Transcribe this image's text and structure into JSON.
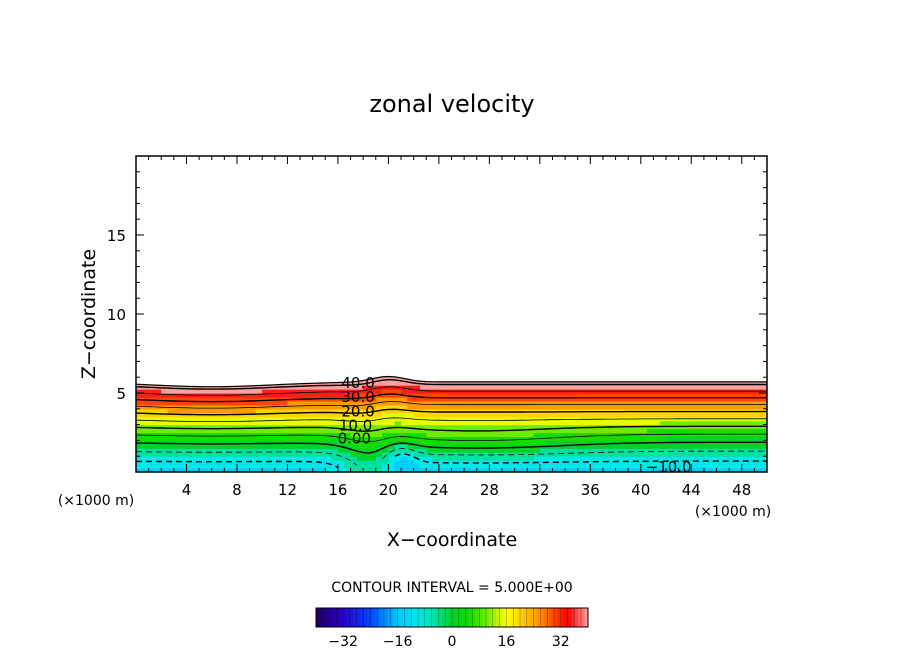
{
  "chart_data": {
    "type": "contour",
    "title": "zonal velocity",
    "xlabel": "X−coordinate",
    "ylabel": "Z−coordinate",
    "x_unit_left": "(×1000 m)",
    "x_unit_right": "(×1000 m)",
    "xlim": [
      0,
      50
    ],
    "ylim": [
      0,
      20
    ],
    "x_ticks": [
      4,
      8,
      12,
      16,
      20,
      24,
      28,
      32,
      36,
      40,
      44,
      48
    ],
    "y_ticks": [
      5,
      10,
      15
    ],
    "contour_interval_text": "CONTOUR INTERVAL = 5.000E+00",
    "contour_labels": [
      {
        "text": "40.0",
        "x": 17.6,
        "z": 5.6
      },
      {
        "text": "30.0",
        "x": 17.6,
        "z": 4.7
      },
      {
        "text": "20.0",
        "x": 17.6,
        "z": 3.8
      },
      {
        "text": "10.0",
        "x": 17.4,
        "z": 2.9
      },
      {
        "text": "0.00",
        "x": 17.3,
        "z": 2.1
      },
      {
        "text": "−10.0",
        "x": 42.2,
        "z": 0.3
      }
    ],
    "colorbar": {
      "range": [
        -40,
        40
      ],
      "ticks": [
        -32,
        -16,
        0,
        16,
        32
      ],
      "tick_labels": [
        "−32",
        "−16",
        "0",
        "16",
        "32"
      ]
    },
    "field_notes": "u increases with height from about -15 near the surface to about 40 near z=5.7 km; above ~6 km the field is blank (unshaded). A mountain-like disturbance at x~16-21 raises contours; negative values (dashed) near the surface."
  },
  "colors": {
    "cyan": "#00e8e8",
    "green": "#00d200",
    "yellow": "#ffff00",
    "orange": "#ff8800",
    "red": "#ff0000",
    "pink": "#ff9a9a"
  }
}
